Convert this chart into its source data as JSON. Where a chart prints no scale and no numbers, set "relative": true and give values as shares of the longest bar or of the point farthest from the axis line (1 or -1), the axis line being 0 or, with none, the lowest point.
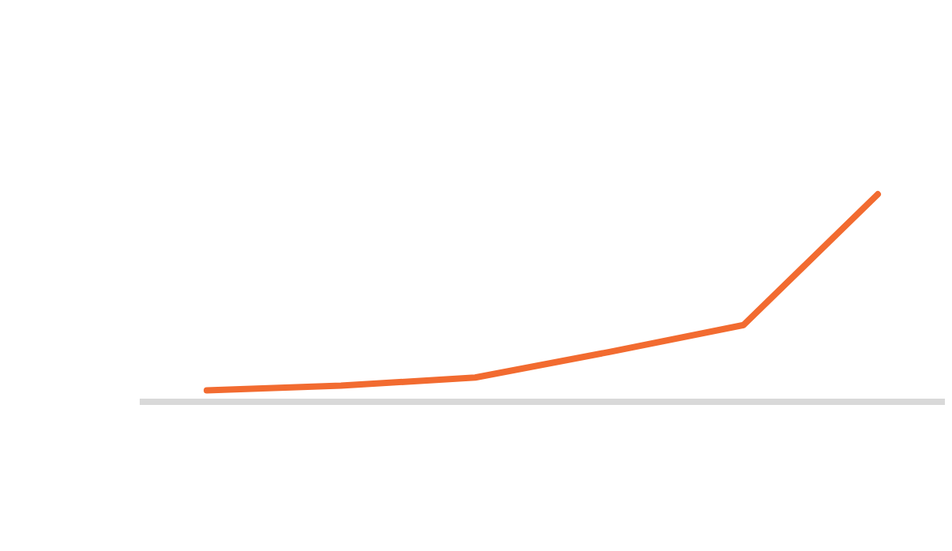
{
  "chart_data": {
    "type": "line",
    "relative": true,
    "categories": [
      null,
      null,
      null,
      null,
      null,
      null
    ],
    "series": [
      {
        "color": "#f26b30",
        "values": [
          0.055,
          0.078,
          0.117,
          0.24,
          0.37,
          1
        ]
      }
    ],
    "grid": false,
    "marker": "none",
    "line_style": "solid"
  }
}
